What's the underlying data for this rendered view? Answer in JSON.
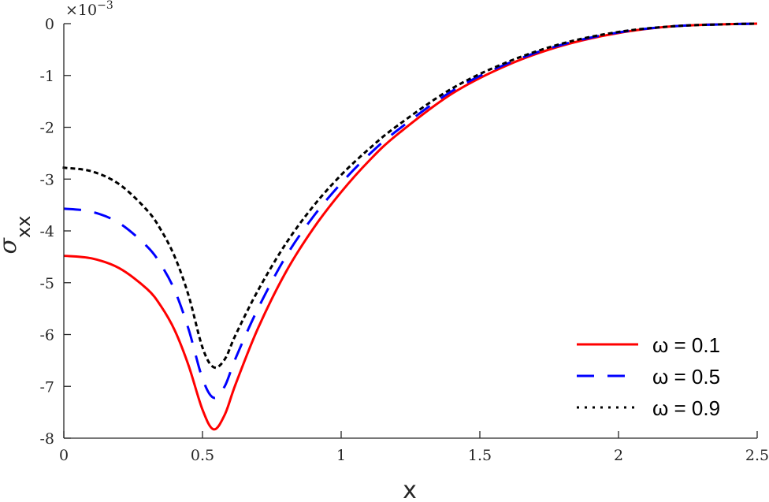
{
  "chart_data": {
    "type": "line",
    "title": "",
    "xlabel": "x",
    "ylabel": "σ_xx",
    "y_exponent_label": "×10^-3",
    "xlim": [
      0,
      2.5
    ],
    "ylim": [
      -8,
      0
    ],
    "x_ticks": [
      "0",
      "0.5",
      "1",
      "1.5",
      "2",
      "2.5"
    ],
    "y_ticks": [
      "0",
      "-1",
      "-2",
      "-3",
      "-4",
      "-5",
      "-6",
      "-7",
      "-8"
    ],
    "grid": false,
    "legend_position": "lower right",
    "x": [
      0,
      0.1,
      0.2,
      0.3,
      0.35,
      0.4,
      0.45,
      0.5,
      0.54,
      0.58,
      0.62,
      0.7,
      0.8,
      0.9,
      1.0,
      1.1,
      1.2,
      1.4,
      1.6,
      1.8,
      2.0,
      2.2,
      2.4,
      2.5
    ],
    "series": [
      {
        "name": "ω = 0.1",
        "color": "#ff0000",
        "style": "solid",
        "values": [
          -4.48,
          -4.53,
          -4.72,
          -5.12,
          -5.45,
          -5.92,
          -6.6,
          -7.45,
          -7.83,
          -7.55,
          -6.95,
          -5.88,
          -4.8,
          -3.95,
          -3.25,
          -2.65,
          -2.15,
          -1.35,
          -0.8,
          -0.42,
          -0.18,
          -0.05,
          -0.01,
          0.0
        ]
      },
      {
        "name": "ω = 0.5",
        "color": "#0000ff",
        "style": "dashed",
        "values": [
          -3.57,
          -3.63,
          -3.85,
          -4.3,
          -4.65,
          -5.15,
          -5.9,
          -6.85,
          -7.22,
          -7.0,
          -6.45,
          -5.5,
          -4.5,
          -3.72,
          -3.08,
          -2.53,
          -2.07,
          -1.3,
          -0.77,
          -0.4,
          -0.17,
          -0.05,
          -0.01,
          0.0
        ]
      },
      {
        "name": "ω = 0.9",
        "color": "#000000",
        "style": "dotted",
        "values": [
          -2.78,
          -2.85,
          -3.1,
          -3.6,
          -3.98,
          -4.5,
          -5.25,
          -6.25,
          -6.63,
          -6.48,
          -6.0,
          -5.15,
          -4.25,
          -3.52,
          -2.92,
          -2.42,
          -1.98,
          -1.25,
          -0.74,
          -0.38,
          -0.16,
          -0.05,
          -0.01,
          0.0
        ]
      }
    ]
  },
  "legend": {
    "items": [
      {
        "label": "ω = 0.1",
        "color": "#ff0000",
        "dash": ""
      },
      {
        "label": "ω = 0.5",
        "color": "#0000ff",
        "dash": "22,17"
      },
      {
        "label": "ω = 0.9",
        "color": "#000000",
        "dash": "3,7"
      }
    ]
  },
  "axes": {
    "x_label": "x",
    "y_label_main": "σ",
    "y_label_sub": "xx",
    "exp_base": "×10",
    "exp_power": "−3"
  }
}
